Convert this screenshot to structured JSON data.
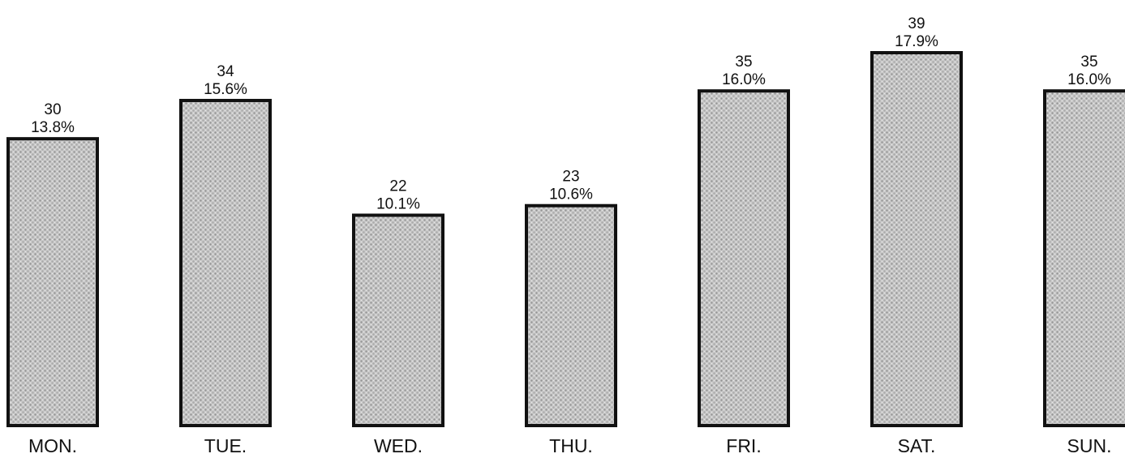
{
  "chart_data": {
    "type": "bar",
    "categories": [
      "MON.",
      "TUE.",
      "WED.",
      "THU.",
      "FRI.",
      "SAT.",
      "SUN."
    ],
    "values": [
      30,
      34,
      22,
      23,
      35,
      39,
      35
    ],
    "percent_labels": [
      "13.8%",
      "15.6%",
      "10.1%",
      "10.6%",
      "16.0%",
      "17.9%",
      "16.0%"
    ],
    "value_labels": [
      "30",
      "34",
      "22",
      "23",
      "35",
      "39",
      "35"
    ],
    "title": "",
    "xlabel": "",
    "ylabel": "",
    "grid": false,
    "legend": "none",
    "bar_fill_color": "#bdbdbd",
    "bar_edge_color": "#111111"
  }
}
